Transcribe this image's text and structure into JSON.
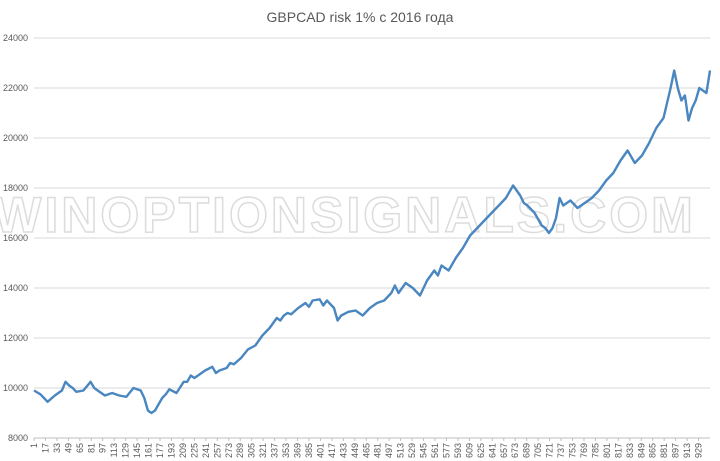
{
  "chart_data": {
    "type": "line",
    "title": "GBPCAD risk 1% с 2016 года",
    "watermark": "WINOPTIONSIGNALS.COM",
    "line_color": "#4a86c0",
    "grid": true,
    "ylim": [
      8000,
      24000
    ],
    "y_ticks": [
      8000,
      10000,
      12000,
      14000,
      16000,
      18000,
      20000,
      22000,
      24000
    ],
    "xlim": [
      1,
      945
    ],
    "x_ticks": [
      "1",
      "17",
      "33",
      "49",
      "65",
      "81",
      "97",
      "113",
      "129",
      "145",
      "161",
      "177",
      "193",
      "209",
      "225",
      "241",
      "257",
      "273",
      "289",
      "305",
      "321",
      "337",
      "353",
      "369",
      "385",
      "401",
      "417",
      "433",
      "449",
      "465",
      "481",
      "497",
      "513",
      "529",
      "545",
      "561",
      "577",
      "593",
      "609",
      "625",
      "641",
      "657",
      "673",
      "689",
      "705",
      "721",
      "737",
      "753",
      "769",
      "785",
      "801",
      "817",
      "833",
      "849",
      "865",
      "881",
      "897",
      "913",
      "929"
    ],
    "series": [
      {
        "x": [
          1,
          10,
          15,
          20,
          30,
          40,
          45,
          50,
          55,
          60,
          70,
          80,
          85,
          90,
          100,
          110,
          120,
          130,
          140,
          150,
          155,
          160,
          165,
          170,
          180,
          185,
          190,
          200,
          210,
          215,
          220,
          225,
          230,
          240,
          250,
          255,
          260,
          270,
          275,
          280,
          290,
          300,
          310,
          320,
          330,
          340,
          345,
          350,
          355,
          360,
          370,
          380,
          385,
          390,
          400,
          405,
          410,
          420,
          425,
          430,
          440,
          450,
          460,
          470,
          480,
          490,
          500,
          505,
          510,
          520,
          530,
          540,
          550,
          560,
          565,
          570,
          580,
          590,
          600,
          610,
          620,
          630,
          640,
          650,
          660,
          670,
          680,
          685,
          690,
          700,
          710,
          715,
          720,
          725,
          730,
          735,
          740,
          750,
          760,
          770,
          780,
          790,
          800,
          810,
          820,
          830,
          840,
          850,
          860,
          870,
          880,
          890,
          895,
          900,
          905,
          910,
          915,
          920,
          925,
          930,
          940,
          945
        ],
        "y": [
          9900,
          9750,
          9600,
          9450,
          9700,
          9900,
          10250,
          10100,
          10000,
          9850,
          9900,
          10250,
          10000,
          9900,
          9700,
          9800,
          9700,
          9650,
          10000,
          9900,
          9600,
          9100,
          9000,
          9100,
          9600,
          9750,
          9950,
          9800,
          10250,
          10250,
          10500,
          10400,
          10500,
          10700,
          10850,
          10600,
          10700,
          10800,
          11000,
          10950,
          11200,
          11550,
          11700,
          12100,
          12400,
          12800,
          12700,
          12900,
          13000,
          12950,
          13200,
          13400,
          13250,
          13500,
          13550,
          13300,
          13500,
          13200,
          12700,
          12900,
          13050,
          13100,
          12900,
          13200,
          13400,
          13500,
          13800,
          14100,
          13800,
          14200,
          14000,
          13700,
          14300,
          14700,
          14500,
          14900,
          14700,
          15200,
          15600,
          16100,
          16400,
          16700,
          17000,
          17300,
          17600,
          18100,
          17700,
          17400,
          17300,
          17000,
          16500,
          16400,
          16200,
          16400,
          16800,
          17600,
          17300,
          17500,
          17200,
          17400,
          17600,
          17900,
          18300,
          18600,
          19100,
          19500,
          19000,
          19300,
          19800,
          20400,
          20800,
          22000,
          22700,
          22000,
          21500,
          21700,
          20700,
          21200,
          21500,
          22000,
          21800,
          22700
        ]
      }
    ]
  }
}
